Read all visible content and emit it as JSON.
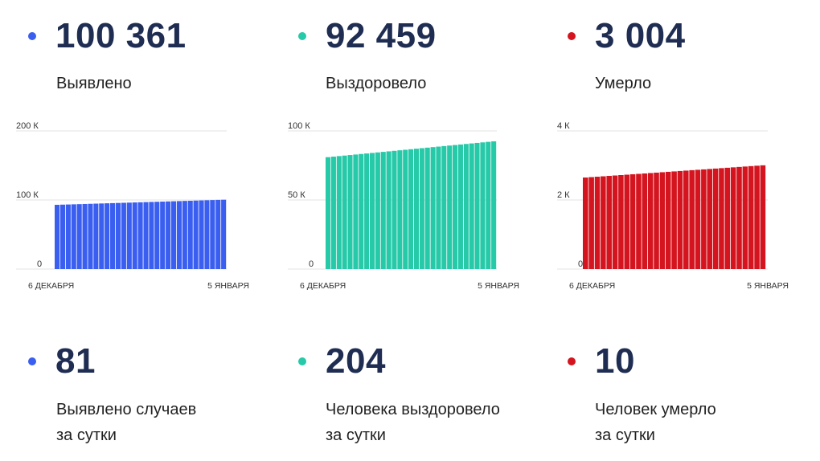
{
  "colors": {
    "detected": "#3a5ef0",
    "recovered": "#26c9a8",
    "died": "#d4141e"
  },
  "totals": [
    {
      "value": "100 361",
      "label": "Выявлено"
    },
    {
      "value": "92 459",
      "label": "Выздоровело"
    },
    {
      "value": "3 004",
      "label": "Умерло"
    }
  ],
  "daily": [
    {
      "value": "81",
      "label_line1": "Выявлено случаев",
      "label_line2": "за сутки"
    },
    {
      "value": "204",
      "label_line1": "Человека выздоровело",
      "label_line2": "за сутки"
    },
    {
      "value": "10",
      "label_line1": "Человек умерло",
      "label_line2": "за сутки"
    }
  ],
  "chart_data": [
    {
      "type": "bar",
      "series": [
        {
          "name": "Выявлено",
          "start": 93000,
          "end": 100361,
          "count": 31
        }
      ],
      "x_labels": [
        "6 ДЕКАБРЯ",
        "5 ЯНВАРЯ"
      ],
      "y_ticks": [
        "0",
        "100 К",
        "200 К"
      ],
      "ylim": [
        0,
        200000
      ]
    },
    {
      "type": "bar",
      "series": [
        {
          "name": "Выздоровело",
          "start": 81000,
          "end": 92459,
          "count": 31
        }
      ],
      "x_labels": [
        "6 ДЕКАБРЯ",
        "5 ЯНВАРЯ"
      ],
      "y_ticks": [
        "0",
        "50 К",
        "100 К"
      ],
      "ylim": [
        0,
        100000
      ]
    },
    {
      "type": "bar",
      "series": [
        {
          "name": "Умерло",
          "start": 2650,
          "end": 3004,
          "count": 31
        }
      ],
      "x_labels": [
        "6 ДЕКАБРЯ",
        "5 ЯНВАРЯ"
      ],
      "y_ticks": [
        "0",
        "2 К",
        "4 К"
      ],
      "ylim": [
        0,
        4000
      ]
    }
  ]
}
